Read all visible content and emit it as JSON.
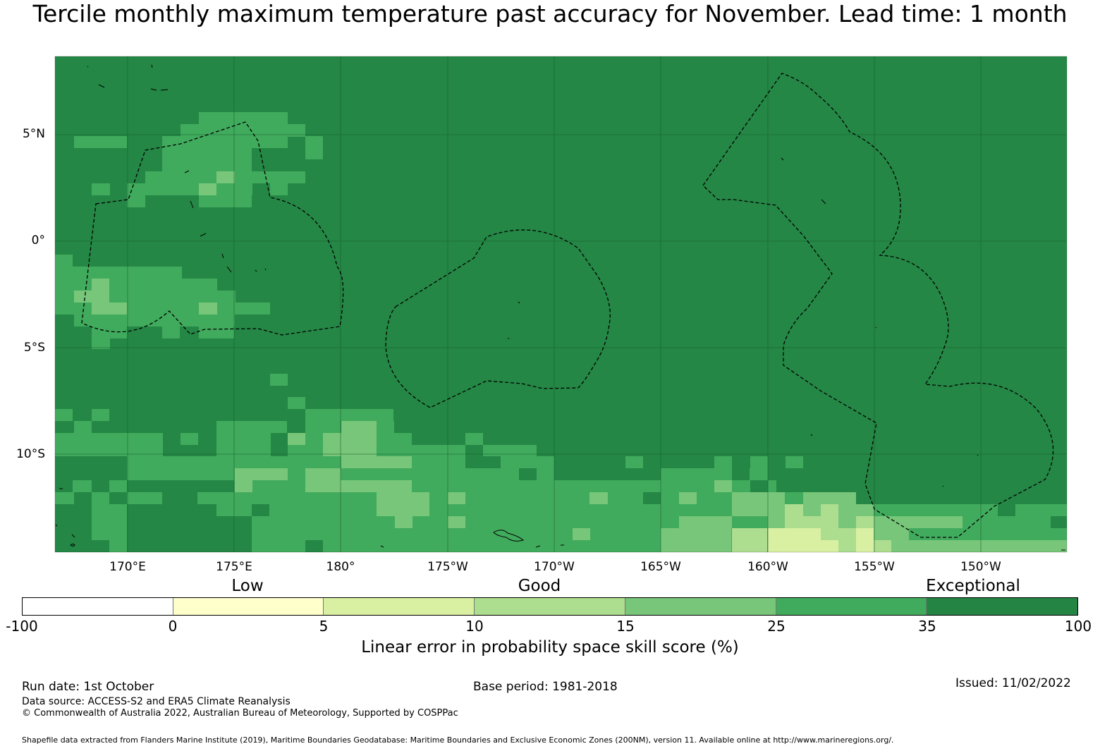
{
  "title": "Tercile monthly maximum temperature past accuracy for November. Lead time: 1 month",
  "map": {
    "lat_labels": [
      "5°N",
      "0°",
      "5°S",
      "10°S"
    ],
    "lon_labels": [
      "170°E",
      "175°E",
      "180°",
      "175°W",
      "170°W",
      "165°W",
      "160°W",
      "155°W",
      "150°W"
    ],
    "extent": {
      "lon_west": 166.6,
      "lon_east": 213.9,
      "lat_north": 8.7,
      "lat_south": -14.5
    },
    "base_color": "#248745",
    "gridline_color": "#1a5c2e"
  },
  "legend": {
    "categories": [
      "Low",
      "Good",
      "Exceptional"
    ],
    "ticks": [
      "-100",
      "0",
      "5",
      "10",
      "15",
      "25",
      "35",
      "100"
    ],
    "colors": [
      "#ffffff",
      "#ffffcc",
      "#d9f0a3",
      "#addd8e",
      "#78c679",
      "#41ab5d",
      "#238443"
    ],
    "axis_label": "Linear error in probability space skill score (%)"
  },
  "footer": {
    "run_date": "Run date: 1st October",
    "base_period": "Base period: 1981-2018",
    "issued": "Issued: 11/02/2022",
    "data_source": "Data source: ACCESS-S2 and ERA5 Climate Reanalysis",
    "copyright": "© Commonwealth of Australia 2022, Australian Bureau of Meteorology, Supported by COSPPac",
    "shapefile": "Shapefile data extracted from Flanders Marine Institute (2019), Maritime Boundaries Geodatabase: Maritime Boundaries and Exclusive Economic Zones (200NM), version 11. Available online at http://www.marineregions.org/."
  }
}
